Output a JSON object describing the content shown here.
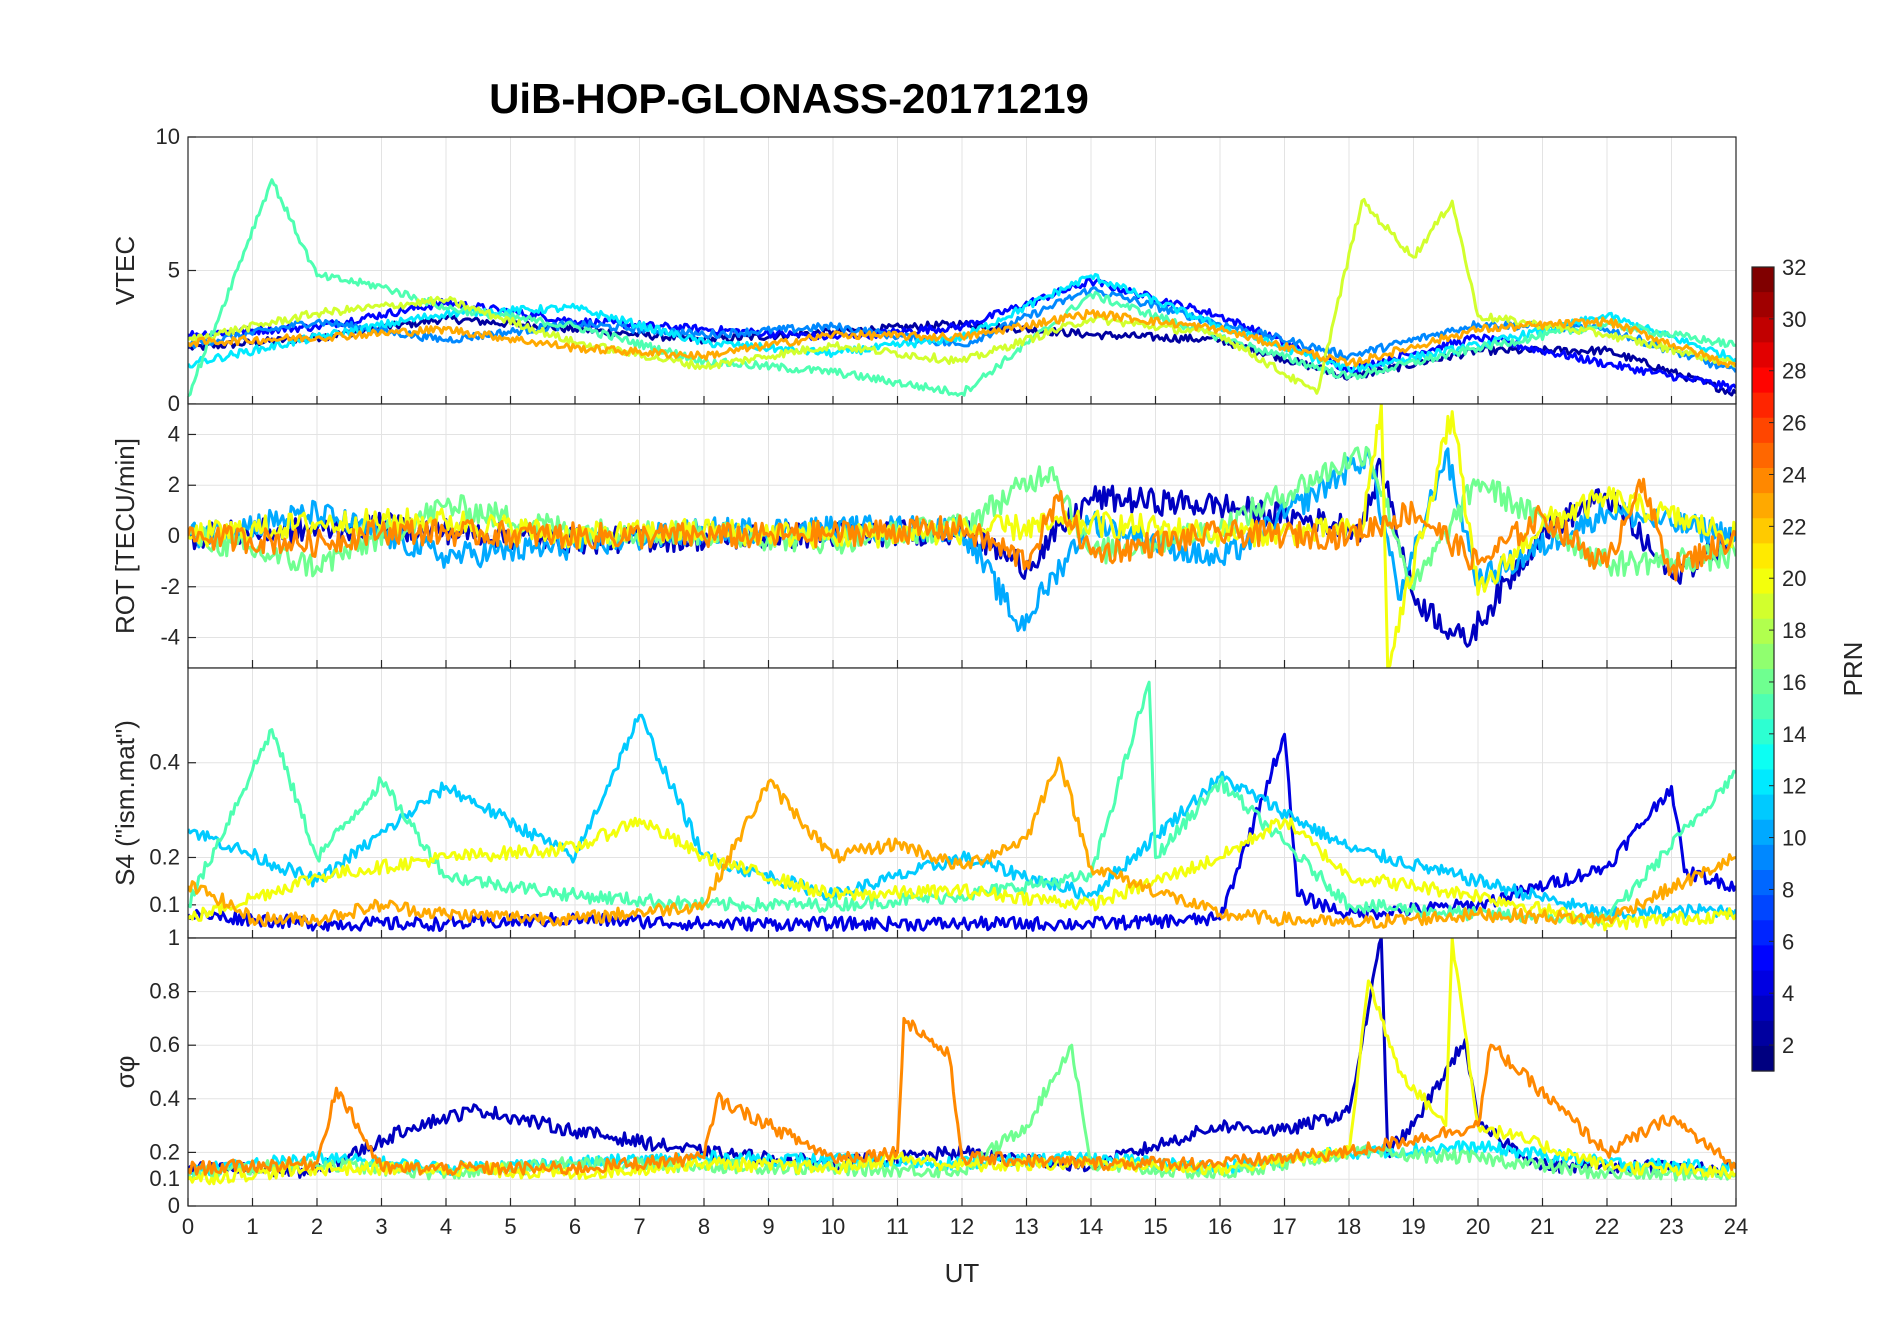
{
  "chart_data": {
    "type": "line",
    "title": "UiB-HOP-GLONASS-20171219",
    "xlabel": "UT",
    "xlim": [
      0,
      24
    ],
    "x_ticks": [
      0,
      1,
      2,
      3,
      4,
      5,
      6,
      7,
      8,
      9,
      10,
      11,
      12,
      13,
      14,
      15,
      16,
      17,
      18,
      19,
      20,
      21,
      22,
      23,
      24
    ],
    "grid": true,
    "colorbar": {
      "label": "PRN",
      "ticks": [
        2,
        4,
        6,
        8,
        10,
        12,
        14,
        16,
        18,
        20,
        22,
        24,
        26,
        28,
        30,
        32
      ],
      "range": [
        1,
        32
      ],
      "colormap": "jet",
      "placement": "right"
    },
    "panels": [
      {
        "id": "vtec",
        "ylabel": "VTEC",
        "ylim": [
          0,
          10
        ],
        "y_ticks": [
          0,
          5,
          10
        ],
        "series": [
          {
            "prn": 2,
            "x": [
              0,
              2,
              4,
              6,
              8,
              10,
              12,
              14,
              16,
              18,
              20,
              22,
              24
            ],
            "y": [
              2.1,
              2.5,
              3.2,
              2.8,
              2.4,
              2.7,
              3.0,
              2.6,
              2.4,
              1.0,
              2.0,
              2.0,
              0.4
            ]
          },
          {
            "prn": 5,
            "x": [
              0,
              2,
              4,
              6,
              8,
              10,
              12,
              14,
              16,
              18,
              20,
              22,
              24
            ],
            "y": [
              2.6,
              2.9,
              3.8,
              3.1,
              2.8,
              2.5,
              2.9,
              4.6,
              3.3,
              1.3,
              2.5,
              1.5,
              0.6
            ]
          },
          {
            "prn": 9,
            "x": [
              0,
              2,
              4,
              6,
              8,
              10,
              12,
              14,
              16,
              18,
              20,
              22,
              24
            ],
            "y": [
              2.2,
              3.1,
              2.4,
              3.0,
              2.6,
              2.9,
              2.2,
              4.3,
              3.0,
              1.8,
              3.0,
              2.8,
              1.2
            ]
          },
          {
            "prn": 12,
            "x": [
              0,
              2,
              4,
              6,
              8,
              10,
              12,
              14,
              16,
              18,
              20,
              22,
              24
            ],
            "y": [
              1.5,
              2.5,
              3.4,
              3.6,
              2.3,
              1.9,
              2.5,
              4.8,
              2.9,
              1.3,
              2.2,
              3.3,
              1.7
            ]
          },
          {
            "prn": 15,
            "x": [
              0,
              1.3,
              2,
              3,
              4,
              6,
              8,
              10,
              12,
              14,
              16,
              18,
              20,
              22,
              24
            ],
            "y": [
              0.3,
              8.4,
              4.8,
              4.4,
              3.6,
              2.9,
              1.6,
              1.2,
              0.4,
              4.1,
              2.5,
              1.0,
              2.1,
              3.0,
              2.2
            ]
          },
          {
            "prn": 19,
            "x": [
              0,
              2,
              4,
              6,
              8,
              10,
              12,
              14,
              16,
              17.5,
              18.2,
              19,
              19.6,
              20,
              22,
              24
            ],
            "y": [
              2.4,
              3.4,
              3.9,
              2.3,
              1.4,
              2.2,
              1.6,
              3.2,
              2.6,
              0.4,
              7.6,
              5.5,
              7.6,
              3.3,
              2.6,
              1.5
            ]
          },
          {
            "prn": 23,
            "x": [
              0,
              2,
              4,
              6,
              8,
              10,
              12,
              14,
              16,
              18,
              20,
              22,
              24
            ],
            "y": [
              2.3,
              2.5,
              2.8,
              2.1,
              1.8,
              2.6,
              2.5,
              3.4,
              2.8,
              1.5,
              2.8,
              3.1,
              1.4
            ]
          }
        ]
      },
      {
        "id": "rot",
        "ylabel": "ROT [TECU/min]",
        "ylim": [
          -5.2,
          5.2
        ],
        "y_ticks": [
          -4,
          -2,
          0,
          2,
          4
        ],
        "series": [
          {
            "prn": 3,
            "x": [
              0,
              3,
              6,
              9,
              12,
              13,
              14,
              16,
              18.2,
              18.5,
              19,
              19.8,
              21,
              22,
              23,
              24
            ],
            "y": [
              0,
              0.4,
              -0.2,
              0,
              0.2,
              -1.2,
              1.5,
              1.2,
              0.3,
              2.8,
              -2.4,
              -4.2,
              0.2,
              1.6,
              -1.6,
              0
            ]
          },
          {
            "prn": 10,
            "x": [
              0,
              2,
              4,
              6,
              8,
              10,
              12,
              12.9,
              14,
              16,
              18.3,
              18.8,
              19.5,
              20,
              22,
              24
            ],
            "y": [
              0,
              0.9,
              -0.8,
              -0.4,
              0.2,
              0.3,
              0.3,
              -3.6,
              0.6,
              -1.0,
              3.2,
              -2.5,
              3.3,
              -1.8,
              1.0,
              0
            ]
          },
          {
            "prn": 16,
            "x": [
              0,
              2,
              4,
              6,
              8,
              10,
              12,
              13.4,
              14,
              16,
              18.3,
              19,
              20,
              22,
              24
            ],
            "y": [
              0,
              -1.2,
              1.2,
              0.2,
              0.1,
              -0.2,
              0.4,
              2.7,
              -0.7,
              0.3,
              3.4,
              -2.1,
              2.2,
              -1.1,
              -0.8
            ]
          },
          {
            "prn": 20,
            "x": [
              0,
              2,
              4,
              6,
              8,
              10,
              12,
              14,
              16,
              18.2,
              18.5,
              18.6,
              19.6,
              20,
              21,
              22,
              24
            ],
            "y": [
              0,
              0.5,
              0.6,
              0,
              0.2,
              0,
              0.2,
              0.5,
              0.1,
              0.2,
              5.2,
              -5.2,
              4.9,
              -2.3,
              0.5,
              1.5,
              0
            ]
          },
          {
            "prn": 24,
            "x": [
              0,
              2,
              3,
              6,
              9,
              12,
              13,
              13.5,
              14,
              16,
              18,
              19,
              20,
              21,
              22,
              22.5,
              23,
              24
            ],
            "y": [
              0,
              -0.3,
              0.2,
              0,
              0,
              0.3,
              -1.0,
              1.4,
              -0.7,
              0.1,
              0,
              1.0,
              -1.1,
              0.8,
              -1.2,
              2.2,
              -1.3,
              0
            ]
          }
        ]
      },
      {
        "id": "s4",
        "ylabel": "S4 (\"ism.mat\")",
        "ylim": [
          0.03,
          0.6
        ],
        "y_ticks": [
          0.1,
          0.2,
          0.4
        ],
        "series": [
          {
            "prn": 4,
            "x": [
              0,
              1,
              2,
              4,
              6,
              8,
              10,
              12,
              14,
              16,
              17,
              17.2,
              18,
              20,
              22,
              23,
              23.2,
              24
            ],
            "y": [
              0.08,
              0.07,
              0.06,
              0.06,
              0.07,
              0.06,
              0.06,
              0.06,
              0.06,
              0.07,
              0.46,
              0.12,
              0.08,
              0.1,
              0.18,
              0.35,
              0.17,
              0.14
            ]
          },
          {
            "prn": 11,
            "x": [
              0,
              2,
              4,
              6,
              7,
              8,
              10,
              12,
              14,
              16,
              18,
              20,
              22,
              24
            ],
            "y": [
              0.26,
              0.15,
              0.35,
              0.2,
              0.5,
              0.2,
              0.12,
              0.2,
              0.12,
              0.37,
              0.22,
              0.15,
              0.08,
              0.09
            ]
          },
          {
            "prn": 15,
            "x": [
              0,
              1.3,
              2,
              3,
              4,
              6,
              8,
              10,
              12,
              14,
              14.9,
              15,
              16,
              18,
              20,
              22,
              24
            ],
            "y": [
              0.1,
              0.47,
              0.2,
              0.36,
              0.16,
              0.12,
              0.1,
              0.1,
              0.12,
              0.16,
              0.57,
              0.2,
              0.36,
              0.1,
              0.08,
              0.07,
              0.38
            ]
          },
          {
            "prn": 20,
            "x": [
              0,
              2,
              4,
              6,
              7,
              8,
              10,
              12,
              14,
              16,
              17,
              18,
              20,
              22,
              24
            ],
            "y": [
              0.07,
              0.16,
              0.2,
              0.22,
              0.28,
              0.2,
              0.12,
              0.13,
              0.1,
              0.2,
              0.28,
              0.16,
              0.12,
              0.06,
              0.08
            ]
          },
          {
            "prn": 23,
            "x": [
              0,
              0.4,
              1,
              2,
              3,
              4,
              6,
              8,
              9,
              10,
              11,
              12,
              13,
              13.5,
              14,
              16,
              18,
              20,
              22,
              24
            ],
            "y": [
              0.14,
              0.12,
              0.07,
              0.07,
              0.1,
              0.08,
              0.07,
              0.1,
              0.36,
              0.2,
              0.23,
              0.18,
              0.24,
              0.41,
              0.18,
              0.08,
              0.06,
              0.08,
              0.07,
              0.2
            ]
          }
        ]
      },
      {
        "id": "sigma",
        "ylabel": "σφ",
        "ylim": [
          0,
          1
        ],
        "y_ticks": [
          0,
          0.1,
          0.2,
          0.4,
          0.6,
          0.8,
          1
        ],
        "series": [
          {
            "prn": 3,
            "x": [
              0,
              2,
              3.5,
              4.5,
              6,
              8,
              10,
              12,
              14,
              16,
              17,
              18,
              18.5,
              18.6,
              19,
              19.8,
              20,
              21,
              22,
              24
            ],
            "y": [
              0.14,
              0.13,
              0.3,
              0.36,
              0.28,
              0.2,
              0.16,
              0.2,
              0.15,
              0.3,
              0.28,
              0.35,
              1.0,
              0.2,
              0.3,
              0.62,
              0.3,
              0.15,
              0.15,
              0.14
            ]
          },
          {
            "prn": 12,
            "x": [
              0,
              2,
              4,
              6,
              8,
              10,
              12,
              14,
              16,
              18,
              20,
              22,
              24
            ],
            "y": [
              0.13,
              0.18,
              0.14,
              0.16,
              0.18,
              0.17,
              0.16,
              0.18,
              0.14,
              0.2,
              0.22,
              0.16,
              0.14
            ]
          },
          {
            "prn": 16,
            "x": [
              0,
              2,
              4,
              6,
              8,
              10,
              12,
              13,
              13.7,
              14,
              16,
              18,
              20,
              22,
              24
            ],
            "y": [
              0.12,
              0.16,
              0.12,
              0.16,
              0.15,
              0.14,
              0.13,
              0.3,
              0.6,
              0.15,
              0.12,
              0.2,
              0.18,
              0.12,
              0.12
            ]
          },
          {
            "prn": 20,
            "x": [
              0,
              2,
              4,
              6,
              8,
              10,
              11,
              12,
              14,
              16,
              18,
              18.3,
              18.8,
              19.5,
              19.6,
              20,
              22,
              24
            ],
            "y": [
              0.1,
              0.14,
              0.14,
              0.12,
              0.16,
              0.14,
              0.18,
              0.15,
              0.16,
              0.14,
              0.2,
              0.84,
              0.5,
              0.3,
              1.0,
              0.3,
              0.15,
              0.12
            ]
          },
          {
            "prn": 24,
            "x": [
              0,
              2,
              2.3,
              3,
              6,
              8,
              8.2,
              10,
              11,
              11.1,
              11.8,
              12,
              14,
              16,
              18,
              20,
              20.2,
              22,
              23,
              24
            ],
            "y": [
              0.14,
              0.16,
              0.44,
              0.14,
              0.14,
              0.18,
              0.4,
              0.18,
              0.2,
              0.7,
              0.56,
              0.18,
              0.16,
              0.16,
              0.2,
              0.3,
              0.6,
              0.2,
              0.33,
              0.14
            ]
          }
        ]
      }
    ]
  }
}
